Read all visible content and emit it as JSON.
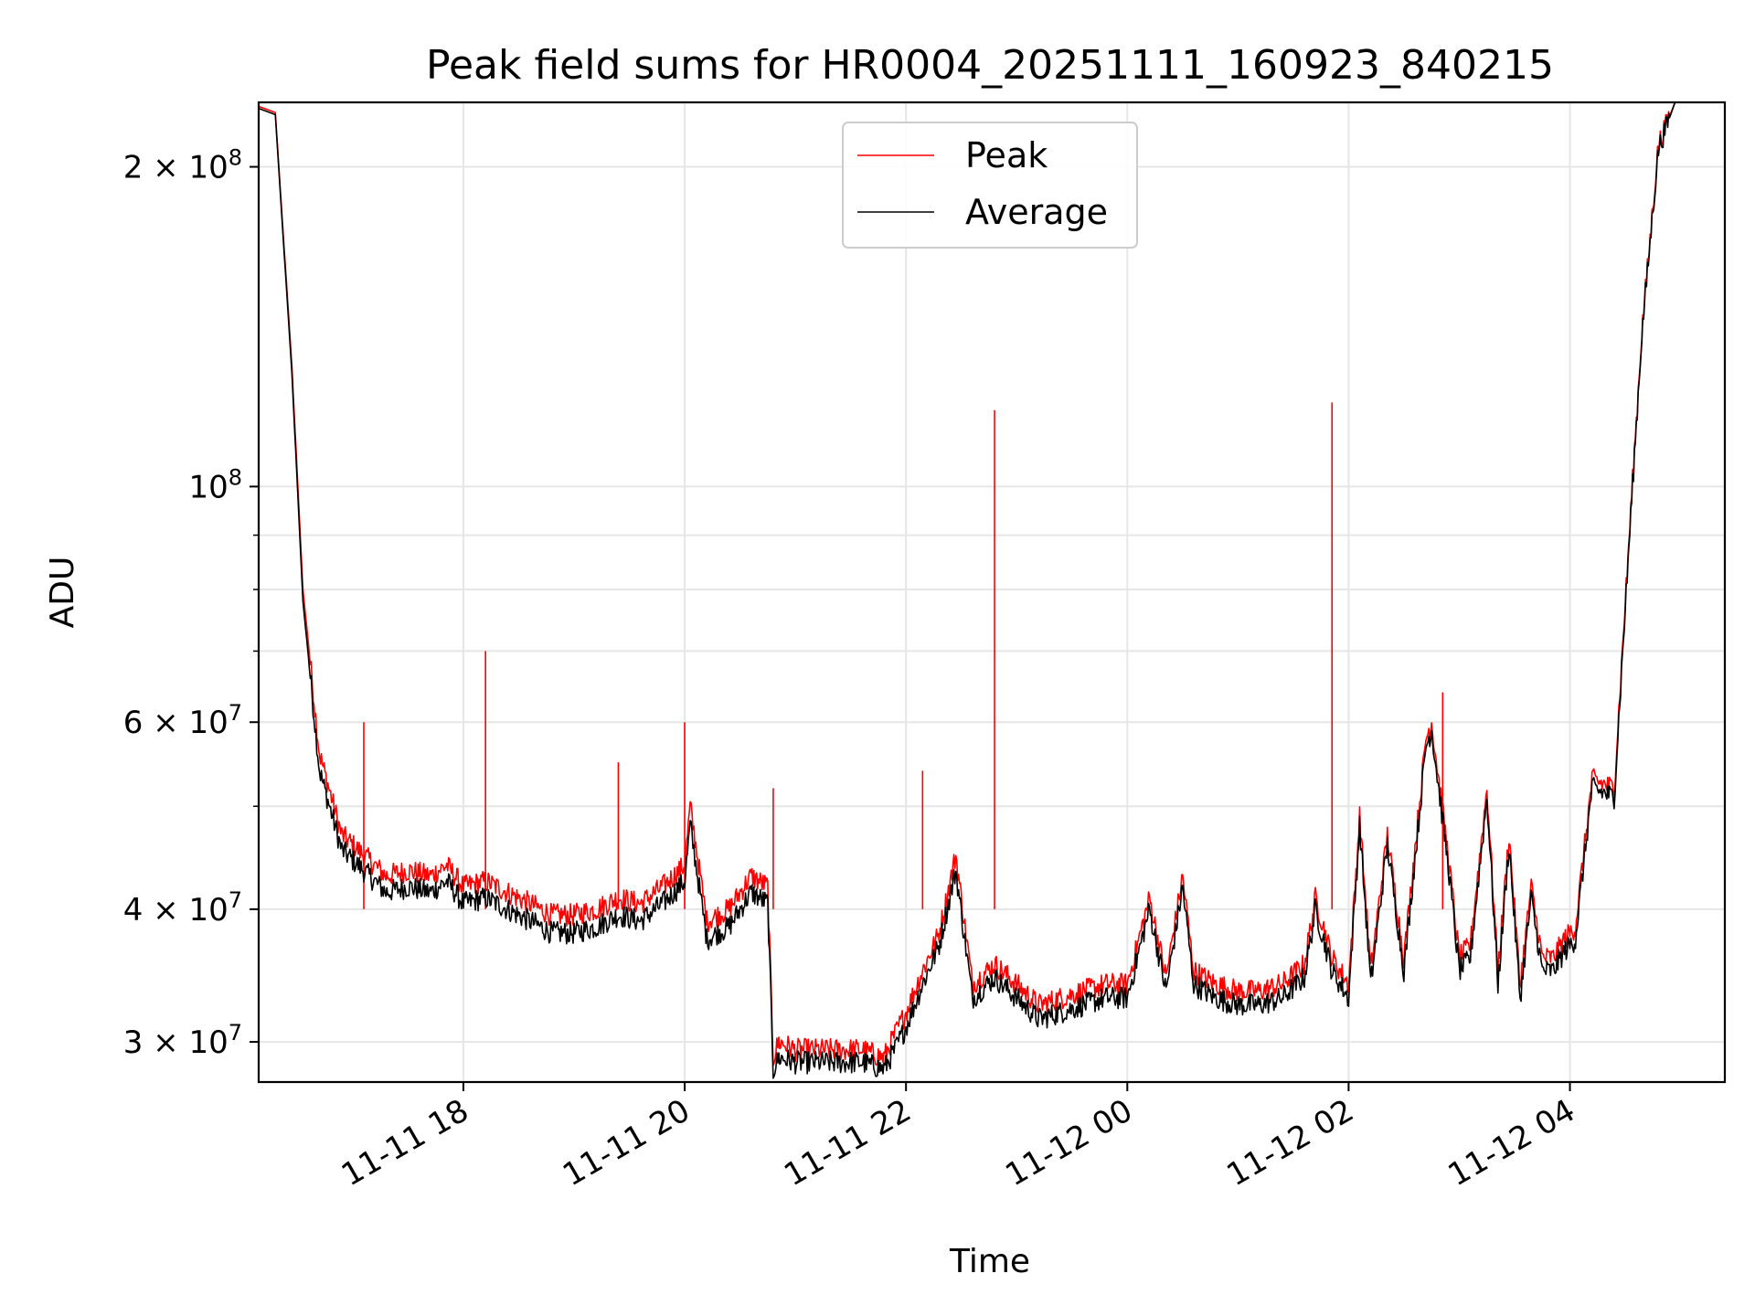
{
  "chart_data": {
    "type": "line",
    "title": "Peak field sums for HR0004_20251111_160923_840215",
    "xlabel": "Time",
    "ylabel": "ADU",
    "yscale": "log",
    "ylim": [
      27500000,
      230000000
    ],
    "xlim_hours": [
      16.15,
      5.4
    ],
    "grid": true,
    "legend_position": "top-center",
    "x_ticks": [
      {
        "label": "11-11 18",
        "hour": 18
      },
      {
        "label": "11-11 20",
        "hour": 20
      },
      {
        "label": "11-11 22",
        "hour": 22
      },
      {
        "label": "11-12 00",
        "hour": 24
      },
      {
        "label": "11-12 02",
        "hour": 26
      },
      {
        "label": "11-12 04",
        "hour": 28
      }
    ],
    "y_ticks": [
      {
        "base": "3 × 10",
        "exp": "7",
        "value": 30000000
      },
      {
        "base": "4 × 10",
        "exp": "7",
        "value": 40000000
      },
      {
        "base": "6 × 10",
        "exp": "7",
        "value": 60000000
      },
      {
        "base": "10",
        "exp": "8",
        "value": 100000000
      },
      {
        "base": "2 × 10",
        "exp": "8",
        "value": 200000000
      }
    ],
    "series": [
      {
        "name": "Peak",
        "color": "#ff0000",
        "x_hours": [
          16.15,
          16.3,
          16.45,
          16.55,
          16.7,
          16.9,
          17.1,
          17.3,
          17.5,
          17.7,
          17.85,
          18.0,
          18.2,
          18.4,
          18.6,
          18.8,
          19.0,
          19.2,
          19.4,
          19.6,
          19.8,
          20.0,
          20.05,
          20.2,
          20.4,
          20.6,
          20.75,
          20.8,
          20.85,
          21.0,
          21.2,
          21.4,
          21.6,
          21.8,
          21.9,
          22.0,
          22.15,
          22.3,
          22.45,
          22.6,
          22.8,
          23.0,
          23.2,
          23.4,
          23.6,
          23.8,
          24.0,
          24.2,
          24.35,
          24.5,
          24.6,
          24.8,
          25.0,
          25.2,
          25.4,
          25.6,
          25.7,
          25.85,
          26.0,
          26.1,
          26.2,
          26.35,
          26.5,
          26.7,
          26.75,
          26.9,
          27.0,
          27.1,
          27.25,
          27.35,
          27.45,
          27.55,
          27.65,
          27.75,
          27.85,
          27.95,
          28.05,
          28.2,
          28.4,
          28.55,
          28.65,
          28.8,
          28.95,
          29.1,
          29.2,
          29.35
        ],
        "values": [
          228000000,
          225000000,
          130000000,
          80000000,
          56000000,
          47000000,
          45000000,
          43000000,
          43500000,
          43000000,
          44000000,
          42000000,
          42500000,
          41500000,
          40500000,
          39500000,
          39500000,
          40000000,
          41000000,
          40500000,
          42000000,
          44000000,
          50000000,
          39000000,
          40000000,
          43000000,
          42000000,
          29000000,
          30000000,
          29500000,
          29500000,
          29500000,
          29500000,
          29000000,
          30500000,
          32000000,
          35000000,
          38000000,
          45000000,
          34000000,
          35500000,
          34000000,
          32500000,
          33000000,
          33500000,
          34000000,
          34000000,
          41000000,
          34500000,
          43000000,
          35000000,
          34000000,
          33500000,
          33500000,
          34000000,
          35500000,
          41000000,
          36000000,
          34000000,
          49000000,
          35000000,
          47000000,
          36000000,
          58000000,
          60000000,
          45000000,
          36000000,
          37000000,
          52000000,
          35000000,
          47000000,
          34000000,
          42000000,
          36000000,
          36000000,
          37500000,
          38500000,
          53000000,
          52000000,
          95000000,
          140000000,
          210000000,
          230000000,
          230000000,
          230000000,
          230000000
        ],
        "spikes": [
          {
            "hour": 18.2,
            "value": 70000000
          },
          {
            "hour": 22.8,
            "value": 118000000
          },
          {
            "hour": 25.85,
            "value": 120000000
          },
          {
            "hour": 20.8,
            "value": 52000000
          },
          {
            "hour": 22.15,
            "value": 54000000
          },
          {
            "hour": 20.0,
            "value": 60000000
          },
          {
            "hour": 17.1,
            "value": 60000000
          },
          {
            "hour": 19.4,
            "value": 55000000
          },
          {
            "hour": 26.85,
            "value": 64000000
          }
        ]
      },
      {
        "name": "Average",
        "color": "#000000",
        "x_hours": [
          16.15,
          16.3,
          16.45,
          16.55,
          16.7,
          16.9,
          17.1,
          17.3,
          17.5,
          17.7,
          17.85,
          18.0,
          18.2,
          18.4,
          18.6,
          18.8,
          19.0,
          19.2,
          19.4,
          19.6,
          19.8,
          20.0,
          20.05,
          20.2,
          20.4,
          20.6,
          20.75,
          20.8,
          20.85,
          21.0,
          21.2,
          21.4,
          21.6,
          21.8,
          21.9,
          22.0,
          22.15,
          22.3,
          22.45,
          22.6,
          22.8,
          23.0,
          23.2,
          23.4,
          23.6,
          23.8,
          24.0,
          24.2,
          24.35,
          24.5,
          24.6,
          24.8,
          25.0,
          25.2,
          25.4,
          25.6,
          25.7,
          25.85,
          26.0,
          26.1,
          26.2,
          26.35,
          26.5,
          26.7,
          26.75,
          26.9,
          27.0,
          27.1,
          27.25,
          27.35,
          27.45,
          27.55,
          27.65,
          27.75,
          27.85,
          27.95,
          28.05,
          28.2,
          28.4,
          28.55,
          28.65,
          28.8,
          28.95,
          29.1,
          29.2,
          29.35
        ],
        "values": [
          227000000,
          224000000,
          128000000,
          78000000,
          54000000,
          45500000,
          43500000,
          41500000,
          42000000,
          41500000,
          42500000,
          40500000,
          41000000,
          40000000,
          39000000,
          38000000,
          38000000,
          38500000,
          39500000,
          39000000,
          40500000,
          42500000,
          48000000,
          37500000,
          38500000,
          41500000,
          40500000,
          28200000,
          29000000,
          28700000,
          28700000,
          28700000,
          28700000,
          28300000,
          29500000,
          31000000,
          34000000,
          37000000,
          43500000,
          33000000,
          34500000,
          33000000,
          31500000,
          32000000,
          32500000,
          33000000,
          33000000,
          40000000,
          33500000,
          42000000,
          34000000,
          33000000,
          32500000,
          32500000,
          33000000,
          34500000,
          40000000,
          35000000,
          33000000,
          48000000,
          34000000,
          46000000,
          35000000,
          57000000,
          59000000,
          44000000,
          35000000,
          36000000,
          51000000,
          34000000,
          46000000,
          33000000,
          41000000,
          35000000,
          35000000,
          36500000,
          37500000,
          52000000,
          51000000,
          94000000,
          139000000,
          208000000,
          230000000,
          230000000,
          230000000,
          230000000
        ]
      }
    ]
  }
}
